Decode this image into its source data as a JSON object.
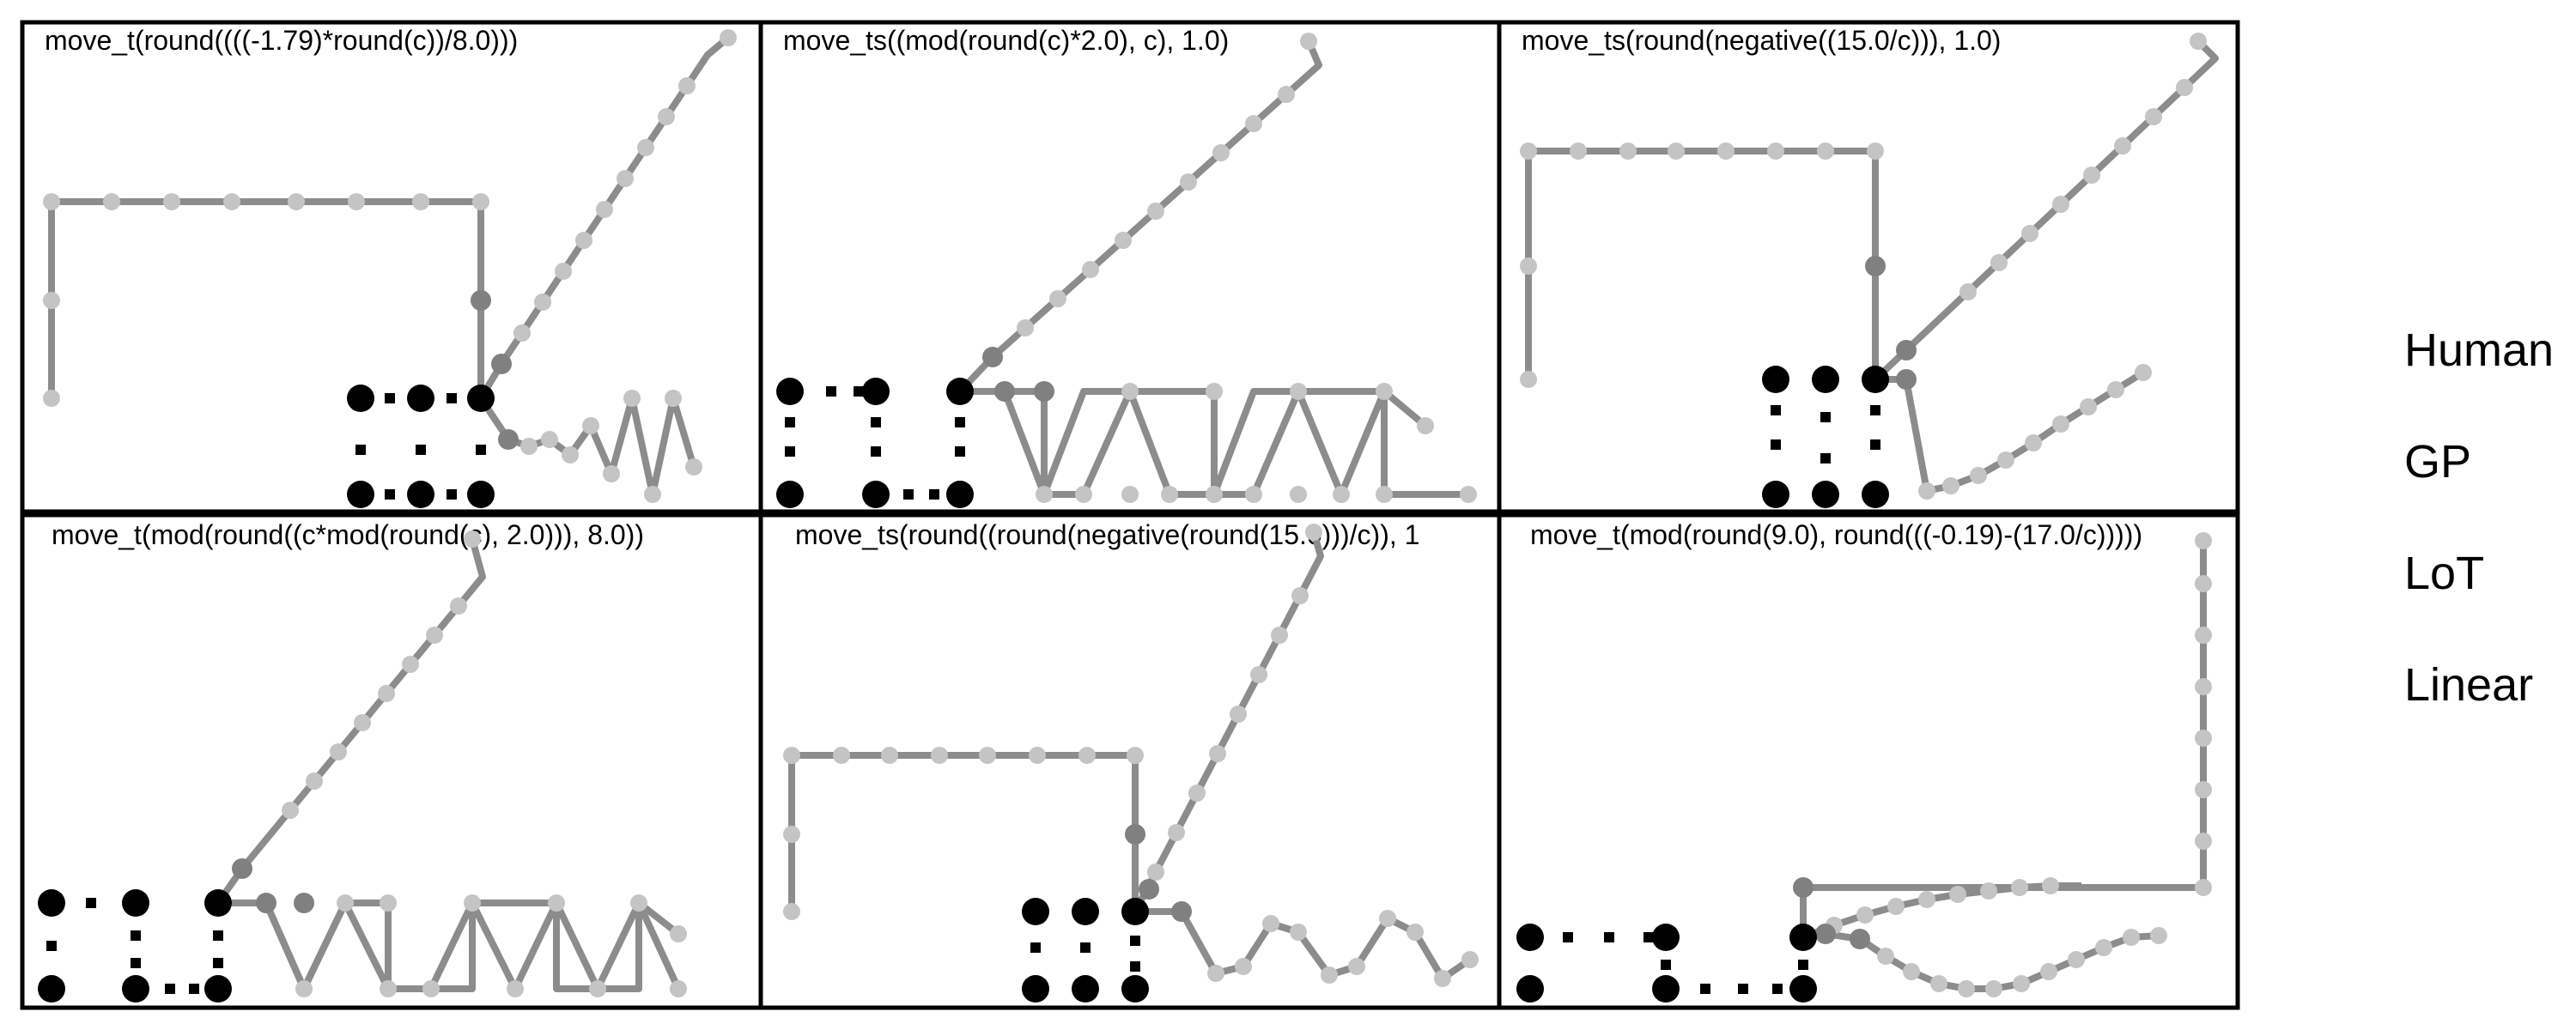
{
  "panels": [
    {
      "title": "move_t(round((((-1.79)*round(c))/8.0)))",
      "path": [
        [
          0,
          0.96
        ],
        [
          0,
          0.92
        ],
        [
          0.5,
          0.92
        ],
        [
          1,
          0.92
        ],
        [
          1.5,
          0.92
        ],
        [
          2,
          0.92
        ],
        [
          2.5,
          0.92
        ],
        [
          3,
          0.92
        ],
        [
          3.5,
          0.92
        ],
        [
          3.5,
          0.96
        ],
        [
          4.3,
          0.89
        ],
        [
          4.6,
          0.97
        ],
        [
          4.9,
          0.94
        ],
        [
          5.2,
          0.94
        ],
        [
          5.5,
          0.96
        ],
        [
          5.8,
          0.98
        ],
        [
          6.1,
          0.94
        ],
        [
          6.4,
          0.98
        ],
        [
          6.7,
          0.95
        ]
      ],
      "extra_paths": [
        [
          [
            0,
            0.96
          ],
          [
            0,
            0.92
          ]
        ]
      ],
      "spiral": null
    },
    {
      "title": "move_ts((mod(round(c)*2.0), c), 1.0)",
      "path": [
        [
          0,
          0.97
        ]
      ],
      "spiral": null
    },
    {
      "title": "move_ts(round(negative((15.0/c))), 1.0)",
      "path": [
        [
          0,
          0.97
        ]
      ],
      "spiral": null
    },
    {
      "title": "move_t(mod(round((c*mod(round(c), 2.0))), 8.0))",
      "path": [
        [
          0,
          0.97
        ]
      ],
      "spiral": null
    },
    {
      "title": "move_ts(round((round(negative(round(15.0)))/c)), 1",
      "path": [
        [
          0,
          0.97
        ]
      ],
      "spiral": null
    },
    {
      "title": "move_t(mod(round(9.0), round(((-0.19)-(17.0/c)))))",
      "path": [
        [
          0,
          0.97
        ]
      ],
      "spiral": null
    }
  ],
  "legend": {
    "entries": [
      "Human",
      "GP",
      "LoT",
      "Linear"
    ]
  },
  "colors": {
    "path": "#8c8c8c",
    "point_light": "#c4c4c4",
    "point_dark": "#808080",
    "dot_black": "#000000",
    "frame": "#000000"
  }
}
